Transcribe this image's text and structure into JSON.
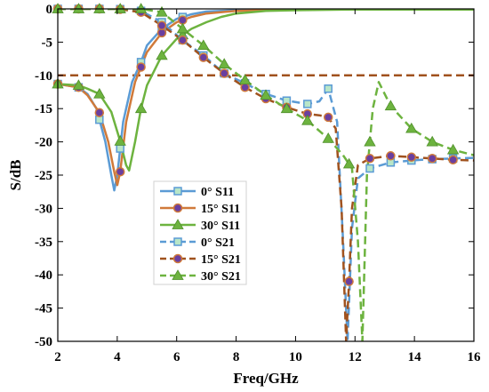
{
  "chart_data": {
    "type": "line",
    "xlabel": "Freq/GHz",
    "ylabel": "S/dB",
    "xlim": [
      2,
      16
    ],
    "ylim": [
      -50,
      0
    ],
    "xticks": [
      2,
      4,
      6,
      8,
      10,
      12,
      14,
      16
    ],
    "yticks": [
      0,
      -5,
      -10,
      -15,
      -20,
      -25,
      -30,
      -35,
      -40,
      -45,
      -50
    ],
    "grid": false,
    "legend_position": "center-left",
    "reference_line": {
      "y": -10,
      "color": "#a0521e",
      "style": "dashed"
    },
    "series": [
      {
        "name": "0° S11",
        "color": "#5b9bd5",
        "dash": false,
        "marker": "square",
        "x": [
          2.0,
          2.7,
          3.0,
          3.3,
          3.6,
          3.8,
          3.9,
          4.0,
          4.2,
          4.5,
          4.8,
          5.0,
          5.5,
          6.0,
          6.5,
          7.0,
          8.0,
          10.0,
          12.0,
          14.0,
          16.0
        ],
        "y": [
          -11.3,
          -11.8,
          -12.8,
          -15.0,
          -20.0,
          -25.0,
          -27.3,
          -25.0,
          -17.0,
          -11.0,
          -8.0,
          -5.5,
          -3.0,
          -1.5,
          -0.8,
          -0.4,
          -0.2,
          -0.1,
          -0.1,
          -0.1,
          -0.1
        ],
        "marker_x": [
          2.0,
          2.7,
          3.4,
          4.1,
          4.8,
          5.5,
          6.2
        ]
      },
      {
        "name": "15° S11",
        "color": "#d07a3a",
        "dash": false,
        "marker": "circle",
        "x": [
          2.0,
          2.7,
          3.0,
          3.4,
          3.7,
          3.9,
          4.0,
          4.1,
          4.3,
          4.6,
          5.0,
          5.5,
          6.0,
          6.5,
          7.0,
          8.0,
          10.0,
          12.0,
          14.0,
          16.0
        ],
        "y": [
          -11.3,
          -11.8,
          -13.0,
          -15.6,
          -20.0,
          -24.5,
          -26.5,
          -24.5,
          -17.0,
          -11.0,
          -6.5,
          -3.6,
          -2.0,
          -1.2,
          -0.7,
          -0.3,
          -0.1,
          -0.1,
          -0.1,
          -0.1
        ],
        "marker_x": [
          2.0,
          2.7,
          3.4,
          4.1,
          4.8,
          5.5,
          6.2
        ]
      },
      {
        "name": "30° S11",
        "color": "#6db33f",
        "dash": false,
        "marker": "triangle",
        "x": [
          2.0,
          2.7,
          3.0,
          3.4,
          3.8,
          4.1,
          4.3,
          4.4,
          4.6,
          4.8,
          5.0,
          5.5,
          6.0,
          6.5,
          7.0,
          7.5,
          8.0,
          9.0,
          10.0,
          12.0,
          14.0,
          16.0
        ],
        "y": [
          -11.3,
          -11.5,
          -12.0,
          -12.8,
          -15.5,
          -19.9,
          -23.5,
          -24.3,
          -20.0,
          -15.0,
          -11.5,
          -7.0,
          -4.5,
          -3.0,
          -2.0,
          -1.2,
          -0.7,
          -0.3,
          -0.2,
          -0.1,
          -0.1,
          -0.1
        ],
        "marker_x": [
          2.0,
          2.7,
          3.4,
          4.1,
          4.8,
          5.5,
          6.2
        ]
      },
      {
        "name": "0° S21",
        "color": "#5b9bd5",
        "dash": true,
        "marker": "square",
        "x": [
          2.0,
          3.0,
          4.0,
          4.8,
          5.5,
          6.2,
          6.9,
          7.6,
          8.3,
          9.0,
          9.7,
          10.4,
          10.8,
          11.1,
          11.4,
          11.6,
          11.75,
          11.9,
          12.1,
          12.5,
          13.2,
          13.9,
          14.6,
          15.3,
          16.0
        ],
        "y": [
          0,
          0,
          0,
          -0.3,
          -2.0,
          -4.7,
          -7.0,
          -9.7,
          -11.2,
          -12.8,
          -13.8,
          -14.3,
          -13.9,
          -12.0,
          -17.0,
          -35.0,
          -50.0,
          -33.0,
          -25.5,
          -24.0,
          -23.1,
          -22.8,
          -22.6,
          -22.5,
          -22.4
        ],
        "marker_x": [
          2.0,
          2.7,
          3.4,
          4.1,
          4.8,
          5.5,
          6.2,
          6.9,
          7.6,
          8.3,
          9.0,
          9.7,
          10.4,
          11.1,
          12.5,
          13.2,
          13.9,
          14.6,
          15.3
        ]
      },
      {
        "name": "15° S21",
        "color": "#a0521e",
        "dash": true,
        "marker": "circle",
        "x": [
          2.0,
          3.0,
          4.0,
          4.8,
          5.5,
          6.2,
          6.9,
          7.6,
          8.3,
          9.0,
          9.7,
          10.4,
          10.8,
          11.1,
          11.35,
          11.55,
          11.7,
          11.8,
          11.9,
          12.1,
          12.5,
          13.2,
          13.9,
          14.6,
          15.3,
          16.0
        ],
        "y": [
          0,
          0,
          0,
          -0.5,
          -2.5,
          -4.7,
          -7.3,
          -9.7,
          -11.8,
          -13.5,
          -14.8,
          -15.8,
          -16.0,
          -16.3,
          -18.0,
          -30.0,
          -50.0,
          -41.0,
          -30.0,
          -23.5,
          -22.5,
          -22.1,
          -22.3,
          -22.5,
          -22.7,
          -22.8
        ],
        "marker_x": [
          2.0,
          2.7,
          3.4,
          4.1,
          4.8,
          5.5,
          6.2,
          6.9,
          7.6,
          8.3,
          9.0,
          9.7,
          10.4,
          11.1,
          11.8,
          12.5,
          13.2,
          13.9,
          14.6,
          15.3
        ]
      },
      {
        "name": "30° S21",
        "color": "#6db33f",
        "dash": true,
        "marker": "triangle",
        "x": [
          2.0,
          3.0,
          4.0,
          4.8,
          5.5,
          6.2,
          6.9,
          7.6,
          8.3,
          9.0,
          9.7,
          10.4,
          11.1,
          11.6,
          11.9,
          12.1,
          12.25,
          12.4,
          12.6,
          12.8,
          13.2,
          13.9,
          14.6,
          15.3,
          16.0
        ],
        "y": [
          0,
          0,
          0,
          0,
          -0.5,
          -3.0,
          -5.5,
          -8.3,
          -10.7,
          -13.0,
          -15.0,
          -16.8,
          -19.5,
          -22.0,
          -24.0,
          -35.0,
          -50.0,
          -25.0,
          -15.0,
          -11.0,
          -14.6,
          -18.0,
          -20.0,
          -21.2,
          -22.0
        ],
        "marker_x": [
          2.0,
          2.7,
          3.4,
          4.1,
          4.8,
          5.5,
          6.2,
          6.9,
          7.6,
          8.3,
          9.0,
          9.7,
          10.4,
          11.1,
          11.8,
          12.5,
          13.2,
          13.9,
          14.6,
          15.3
        ]
      }
    ]
  }
}
